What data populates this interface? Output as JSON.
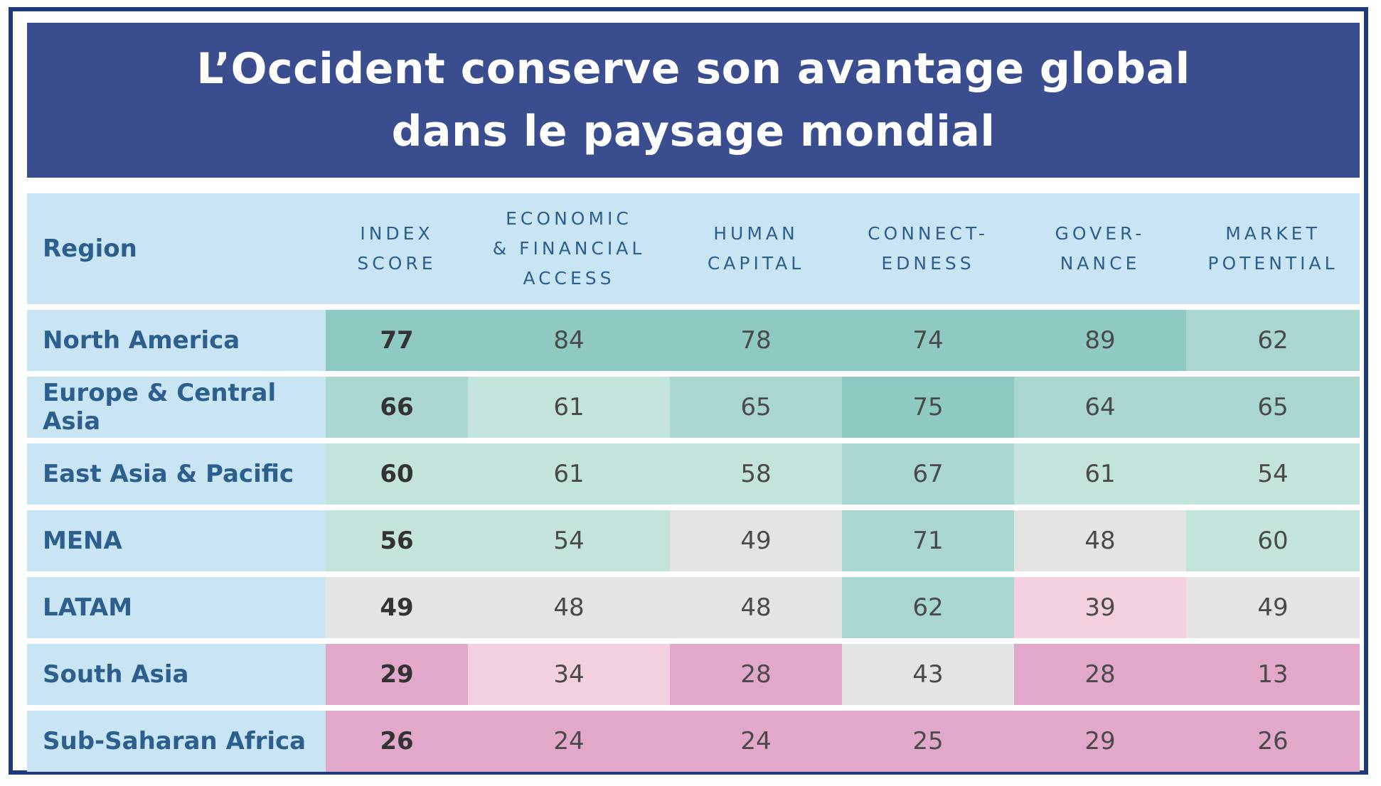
{
  "title": "L’Occident conserve son avantage global\ndans le paysage mondial",
  "chart_data": {
    "type": "table",
    "columns": [
      "Region",
      "INDEX\nSCORE",
      "ECONOMIC\n& FINANCIAL\nACCESS",
      "HUMAN\nCAPITAL",
      "CONNECT-\nEDNESS",
      "GOVER-\nNANCE",
      "MARKET\nPOTENTIAL"
    ],
    "rows": [
      {
        "region": "North America",
        "values": [
          77,
          84,
          78,
          74,
          89,
          62
        ]
      },
      {
        "region": "Europe & Central Asia",
        "values": [
          66,
          61,
          65,
          75,
          64,
          65
        ]
      },
      {
        "region": "East Asia & Pacific",
        "values": [
          60,
          61,
          58,
          67,
          61,
          54
        ]
      },
      {
        "region": "MENA",
        "values": [
          56,
          54,
          49,
          71,
          48,
          60
        ]
      },
      {
        "region": "LATAM",
        "values": [
          49,
          48,
          48,
          62,
          39,
          49
        ]
      },
      {
        "region": "South Asia",
        "values": [
          29,
          34,
          28,
          43,
          28,
          13
        ]
      },
      {
        "region": "Sub-Saharan Africa",
        "values": [
          26,
          24,
          24,
          25,
          29,
          26
        ]
      }
    ]
  },
  "colors": {
    "title_band": "#3a4d8f",
    "frame": "#1f3a7a",
    "header_bg": "#c9e5f4",
    "text_region": "#2c5f8e",
    "scale": {
      "very_high": "#8fcac2",
      "high": "#a9d7d0",
      "mid_high": "#c3e3dd",
      "neutral": "#e3e4e4",
      "low_light": "#f2d0e0",
      "low": "#e2a8ca",
      "very_low": "#e3a9cb"
    }
  }
}
